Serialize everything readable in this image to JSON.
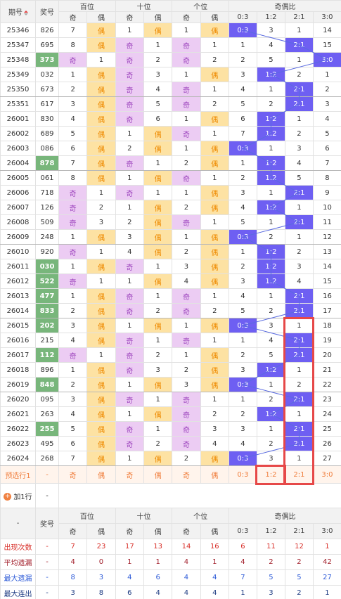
{
  "table": {
    "header": {
      "issue": "期号",
      "number": "奖号",
      "groups": [
        "百位",
        "十位",
        "个位",
        "奇偶比"
      ],
      "sub": [
        "奇",
        "偶",
        "奇",
        "偶",
        "奇",
        "偶",
        "0:3",
        "1:2",
        "2:1",
        "3:0"
      ]
    },
    "rows": [
      {
        "issue": "25346",
        "number": "826",
        "hot": false,
        "cells": [
          7,
          "偶",
          1,
          "偶",
          1,
          "偶",
          "0:3",
          3,
          1,
          14
        ]
      },
      {
        "issue": "25347",
        "number": "695",
        "hot": false,
        "cells": [
          8,
          "偶",
          "奇",
          1,
          "奇",
          1,
          1,
          4,
          "2:1",
          15
        ]
      },
      {
        "issue": "25348",
        "number": "373",
        "hot": true,
        "cells": [
          "奇",
          1,
          "奇",
          2,
          "奇",
          2,
          2,
          5,
          1,
          "3:0"
        ]
      },
      {
        "issue": "25349",
        "number": "032",
        "hot": false,
        "cells": [
          1,
          "偶",
          "奇",
          3,
          1,
          "偶",
          3,
          "1:2",
          2,
          1
        ]
      },
      {
        "issue": "25350",
        "number": "673",
        "hot": false,
        "cells": [
          2,
          "偶",
          "奇",
          4,
          "奇",
          1,
          4,
          1,
          "2:1",
          2
        ]
      },
      {
        "issue": "25351",
        "number": "617",
        "hot": false,
        "cells": [
          3,
          "偶",
          "奇",
          5,
          "奇",
          2,
          5,
          2,
          "2:1",
          3
        ]
      },
      {
        "issue": "26001",
        "number": "830",
        "hot": false,
        "cells": [
          4,
          "偶",
          "奇",
          6,
          1,
          "偶",
          6,
          "1:2",
          1,
          4
        ]
      },
      {
        "issue": "26002",
        "number": "689",
        "hot": false,
        "cells": [
          5,
          "偶",
          1,
          "偶",
          "奇",
          1,
          7,
          "1:2",
          2,
          5
        ]
      },
      {
        "issue": "26003",
        "number": "086",
        "hot": false,
        "cells": [
          6,
          "偶",
          2,
          "偶",
          1,
          "偶",
          "0:3",
          1,
          3,
          6
        ]
      },
      {
        "issue": "26004",
        "number": "878",
        "hot": true,
        "cells": [
          7,
          "偶",
          "奇",
          1,
          2,
          "偶",
          1,
          "1:2",
          4,
          7
        ]
      },
      {
        "issue": "26005",
        "number": "061",
        "hot": false,
        "cells": [
          8,
          "偶",
          1,
          "偶",
          "奇",
          1,
          2,
          "1:2",
          5,
          8
        ]
      },
      {
        "issue": "26006",
        "number": "718",
        "hot": false,
        "cells": [
          "奇",
          1,
          "奇",
          1,
          1,
          "偶",
          3,
          1,
          "2:1",
          9
        ]
      },
      {
        "issue": "26007",
        "number": "126",
        "hot": false,
        "cells": [
          "奇",
          2,
          1,
          "偶",
          2,
          "偶",
          4,
          "1:2",
          1,
          10
        ]
      },
      {
        "issue": "26008",
        "number": "509",
        "hot": false,
        "cells": [
          "奇",
          3,
          2,
          "偶",
          "奇",
          1,
          5,
          1,
          "2:1",
          11
        ]
      },
      {
        "issue": "26009",
        "number": "248",
        "hot": false,
        "cells": [
          1,
          "偶",
          3,
          "偶",
          1,
          "偶",
          "0:3",
          2,
          1,
          12
        ]
      },
      {
        "issue": "26010",
        "number": "920",
        "hot": false,
        "cells": [
          "奇",
          1,
          4,
          "偶",
          2,
          "偶",
          1,
          "1:2",
          2,
          13
        ]
      },
      {
        "issue": "26011",
        "number": "030",
        "hot": true,
        "cells": [
          1,
          "偶",
          "奇",
          1,
          3,
          "偶",
          2,
          "1:2",
          3,
          14
        ]
      },
      {
        "issue": "26012",
        "number": "522",
        "hot": true,
        "cells": [
          "奇",
          1,
          1,
          "偶",
          4,
          "偶",
          3,
          "1:2",
          4,
          15
        ]
      },
      {
        "issue": "26013",
        "number": "477",
        "hot": true,
        "cells": [
          1,
          "偶",
          "奇",
          1,
          "奇",
          1,
          4,
          1,
          "2:1",
          16
        ]
      },
      {
        "issue": "26014",
        "number": "833",
        "hot": true,
        "cells": [
          2,
          "偶",
          "奇",
          2,
          "奇",
          2,
          5,
          2,
          "2:1",
          17
        ]
      },
      {
        "issue": "26015",
        "number": "202",
        "hot": true,
        "cells": [
          3,
          "偶",
          1,
          "偶",
          1,
          "偶",
          "0:3",
          3,
          1,
          18
        ]
      },
      {
        "issue": "26016",
        "number": "215",
        "hot": false,
        "cells": [
          4,
          "偶",
          "奇",
          1,
          "奇",
          1,
          1,
          4,
          "2:1",
          19
        ]
      },
      {
        "issue": "26017",
        "number": "112",
        "hot": true,
        "cells": [
          "奇",
          1,
          "奇",
          2,
          1,
          "偶",
          2,
          5,
          "2:1",
          20
        ]
      },
      {
        "issue": "26018",
        "number": "896",
        "hot": false,
        "cells": [
          1,
          "偶",
          "奇",
          3,
          2,
          "偶",
          3,
          "1:2",
          1,
          21
        ]
      },
      {
        "issue": "26019",
        "number": "848",
        "hot": true,
        "cells": [
          2,
          "偶",
          1,
          "偶",
          3,
          "偶",
          "0:3",
          1,
          2,
          22
        ]
      },
      {
        "issue": "26020",
        "number": "095",
        "hot": false,
        "cells": [
          3,
          "偶",
          "奇",
          1,
          "奇",
          1,
          1,
          2,
          "2:1",
          23
        ]
      },
      {
        "issue": "26021",
        "number": "263",
        "hot": false,
        "cells": [
          4,
          "偶",
          1,
          "偶",
          "奇",
          2,
          2,
          "1:2",
          1,
          24
        ]
      },
      {
        "issue": "26022",
        "number": "255",
        "hot": true,
        "cells": [
          5,
          "偶",
          "奇",
          1,
          "奇",
          3,
          3,
          1,
          "2:1",
          25
        ]
      },
      {
        "issue": "26023",
        "number": "495",
        "hot": false,
        "cells": [
          6,
          "偶",
          "奇",
          2,
          "奇",
          4,
          4,
          2,
          "2:1",
          26
        ]
      },
      {
        "issue": "26024",
        "number": "268",
        "hot": false,
        "cells": [
          7,
          "偶",
          1,
          "偶",
          2,
          "偶",
          "0:3",
          3,
          1,
          27
        ]
      }
    ],
    "preselect": {
      "label": "预选行1",
      "number": "-",
      "cells": [
        "奇",
        "偶",
        "奇",
        "偶",
        "奇",
        "偶",
        "0:3",
        "1:2",
        "2:1",
        "3:0"
      ]
    },
    "add_row": {
      "label": "加1行",
      "value": "-"
    },
    "stats_header": {
      "corner": "-",
      "number": "奖号",
      "groups": [
        "百位",
        "十位",
        "个位",
        "奇偶比"
      ],
      "sub": [
        "奇",
        "偶",
        "奇",
        "偶",
        "奇",
        "偶",
        "0:3",
        "1:2",
        "2:1",
        "3:0"
      ]
    },
    "stats": [
      {
        "label": "出现次数",
        "number": "-",
        "values": [
          7,
          23,
          17,
          13,
          14,
          16,
          6,
          11,
          12,
          1
        ]
      },
      {
        "label": "平均遗漏",
        "number": "-",
        "values": [
          4,
          0,
          1,
          1,
          4,
          1,
          4,
          2,
          2,
          42
        ]
      },
      {
        "label": "最大遗漏",
        "number": "-",
        "values": [
          8,
          3,
          4,
          6,
          4,
          4,
          7,
          5,
          5,
          27
        ]
      },
      {
        "label": "最大连出",
        "number": "-",
        "values": [
          3,
          8,
          6,
          4,
          4,
          4,
          1,
          3,
          2,
          1
        ]
      }
    ]
  }
}
